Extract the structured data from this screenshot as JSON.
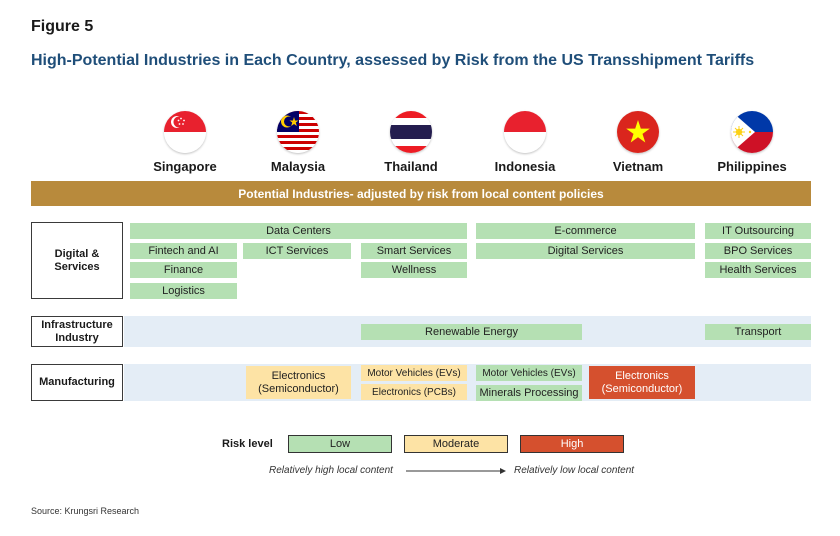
{
  "figure_label": "Figure 5",
  "title": "High-Potential Industries in Each Country, assessed by Risk from the US Transshipment Tariffs",
  "countries": [
    {
      "name": "Singapore",
      "flag": "singapore-flag-icon"
    },
    {
      "name": "Malaysia",
      "flag": "malaysia-flag-icon"
    },
    {
      "name": "Thailand",
      "flag": "thailand-flag-icon"
    },
    {
      "name": "Indonesia",
      "flag": "indonesia-flag-icon"
    },
    {
      "name": "Vietnam",
      "flag": "vietnam-flag-icon"
    },
    {
      "name": "Philippines",
      "flag": "philippines-flag-icon"
    }
  ],
  "banner": "Potential Industries- adjusted by risk from local content policies",
  "rows": {
    "digital": "Digital &\nServices",
    "infrastructure": "Infrastructure\nIndustry",
    "manufacturing": "Manufacturing"
  },
  "cells": {
    "data_centers": "Data Centers",
    "ecommerce": "E-commerce",
    "it_outsourcing": "IT Outsourcing",
    "fintech_ai": "Fintech and AI",
    "ict_services": "ICT Services",
    "smart_services": "Smart Services",
    "digital_services": "Digital Services",
    "bpo_services": "BPO Services",
    "finance": "Finance",
    "wellness": "Wellness",
    "health_services": "Health Services",
    "logistics": "Logistics",
    "renewable_energy": "Renewable Energy",
    "transport": "Transport",
    "electronics_my": "Electronics\n(Semiconductor)",
    "motor_vehicles_th": "Motor Vehicles (EVs)",
    "electronics_pcbs": "Electronics (PCBs)",
    "motor_vehicles_id": "Motor Vehicles (EVs)",
    "minerals_processing": "Minerals Processing",
    "electronics_vn": "Electronics\n(Semiconductor)"
  },
  "legend": {
    "title": "Risk level",
    "low": "Low",
    "moderate": "Moderate",
    "high": "High",
    "left_note": "Relatively high local content",
    "right_note": "Relatively low local content"
  },
  "colors": {
    "low": "#b5e0b3",
    "moderate": "#fde3a5",
    "high": "#d5502e",
    "banner": "#b88a3c",
    "title": "#1f4e79"
  },
  "source": "Source: Krungsri Research"
}
